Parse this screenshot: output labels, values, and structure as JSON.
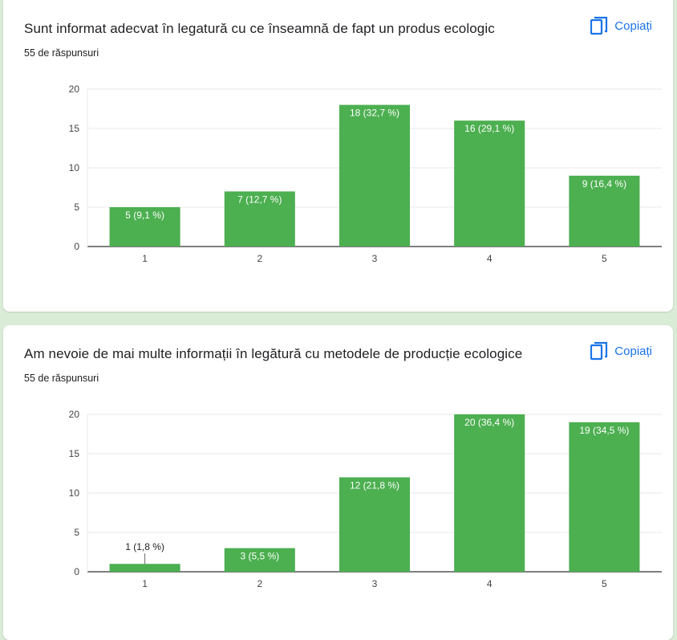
{
  "copy_label": "Copiați",
  "colors": {
    "bar": "#4caf50",
    "accent": "#1a73e8",
    "grid": "#e8e8e8"
  },
  "cards": [
    {
      "title": "Sunt informat adecvat în legatură cu ce înseamnă de fapt un produs ecologic",
      "count": "55 de răspunsuri"
    },
    {
      "title": "Am nevoie de mai multe informații în legătură cu metodele de producție ecologice",
      "count": "55 de răspunsuri"
    }
  ],
  "chart_data": [
    {
      "type": "bar",
      "categories": [
        "1",
        "2",
        "3",
        "4",
        "5"
      ],
      "values": [
        5,
        7,
        18,
        16,
        9
      ],
      "labels": [
        "5 (9,1 %)",
        "7 (12,7 %)",
        "18 (32,7 %)",
        "16 (29,1 %)",
        "9 (16,4 %)"
      ],
      "yticks": [
        "0",
        "5",
        "10",
        "15",
        "20"
      ],
      "ylim": [
        0,
        20
      ],
      "grid": true
    },
    {
      "type": "bar",
      "categories": [
        "1",
        "2",
        "3",
        "4",
        "5"
      ],
      "values": [
        1,
        3,
        12,
        20,
        19
      ],
      "labels": [
        "1 (1,8 %)",
        "3 (5,5 %)",
        "12 (21,8 %)",
        "20 (36,4 %)",
        "19 (34,5 %)"
      ],
      "yticks": [
        "0",
        "5",
        "10",
        "15",
        "20"
      ],
      "ylim": [
        0,
        20
      ],
      "grid": true
    }
  ]
}
